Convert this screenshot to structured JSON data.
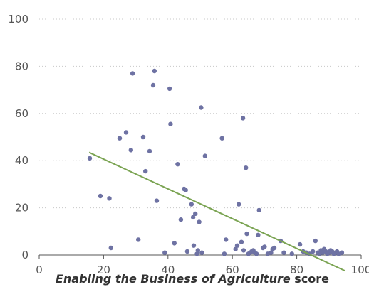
{
  "chart_data": {
    "type": "scatter",
    "title": "",
    "xlabel_italic": "Enabling the Business of Agriculture",
    "xlabel_tail": " score",
    "xlim": [
      0,
      100
    ],
    "ylim": [
      0,
      100
    ],
    "xticks": [
      0,
      20,
      40,
      60,
      80,
      100
    ],
    "yticks": [
      0,
      20,
      40,
      60,
      80,
      100
    ],
    "grid": "horizontal-dotted",
    "point_color": "#6e72a3",
    "trend_color": "#7ba453",
    "trendline": {
      "x": [
        15.5,
        95
      ],
      "y": [
        43.5,
        -6.7
      ]
    },
    "points": [
      [
        15.7,
        41
      ],
      [
        19,
        25
      ],
      [
        21.8,
        24
      ],
      [
        22.3,
        3
      ],
      [
        25,
        49.5
      ],
      [
        27,
        52
      ],
      [
        28.5,
        44.5
      ],
      [
        29,
        77
      ],
      [
        30.8,
        6.5
      ],
      [
        32.3,
        50
      ],
      [
        33,
        35.5
      ],
      [
        34.3,
        44
      ],
      [
        35.4,
        72
      ],
      [
        35.8,
        78
      ],
      [
        36.5,
        23
      ],
      [
        39,
        1
      ],
      [
        40.5,
        70.5
      ],
      [
        40.8,
        55.5
      ],
      [
        42,
        5
      ],
      [
        43,
        38.5
      ],
      [
        44,
        15
      ],
      [
        45,
        28
      ],
      [
        45.5,
        27.5
      ],
      [
        46,
        1.5
      ],
      [
        47.3,
        21.5
      ],
      [
        47.8,
        16
      ],
      [
        48,
        4
      ],
      [
        48.5,
        17.5
      ],
      [
        49,
        0.5
      ],
      [
        49.3,
        2
      ],
      [
        49.7,
        14
      ],
      [
        50.3,
        62.5
      ],
      [
        50.5,
        1
      ],
      [
        51.5,
        42
      ],
      [
        56.8,
        49.5
      ],
      [
        57.5,
        0.5
      ],
      [
        58,
        6.5
      ],
      [
        61,
        2.5
      ],
      [
        61.5,
        4
      ],
      [
        62,
        21.5
      ],
      [
        62.8,
        5.5
      ],
      [
        63.3,
        58
      ],
      [
        63.5,
        2
      ],
      [
        64.2,
        37
      ],
      [
        64.5,
        9
      ],
      [
        65,
        0.5
      ],
      [
        65.5,
        1
      ],
      [
        66,
        1.5
      ],
      [
        66.5,
        2
      ],
      [
        67,
        1
      ],
      [
        67.5,
        0.5
      ],
      [
        68,
        8.5
      ],
      [
        68.3,
        19
      ],
      [
        69.5,
        3
      ],
      [
        70,
        3.5
      ],
      [
        71,
        0.5
      ],
      [
        72,
        1
      ],
      [
        72.5,
        2.5
      ],
      [
        73,
        3
      ],
      [
        75,
        6
      ],
      [
        76,
        1
      ],
      [
        78.5,
        0.5
      ],
      [
        81,
        4.5
      ],
      [
        82,
        1.5
      ],
      [
        83,
        1
      ],
      [
        84,
        0.5
      ],
      [
        85,
        1.5
      ],
      [
        85.8,
        6
      ],
      [
        86.5,
        1
      ],
      [
        87,
        0.5
      ],
      [
        87.5,
        2
      ],
      [
        88,
        1
      ],
      [
        88.5,
        2.5
      ],
      [
        89,
        1.5
      ],
      [
        89.5,
        0.5
      ],
      [
        90,
        1
      ],
      [
        90.5,
        2
      ],
      [
        91,
        1.5
      ],
      [
        91.5,
        0.5
      ],
      [
        92,
        1
      ],
      [
        92.5,
        1.5
      ],
      [
        93,
        0.5
      ],
      [
        94,
        1
      ]
    ]
  }
}
